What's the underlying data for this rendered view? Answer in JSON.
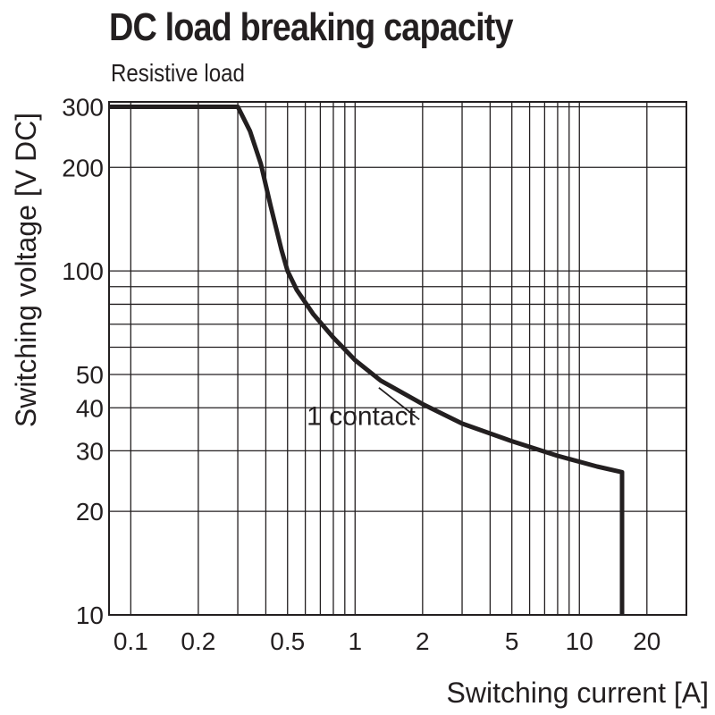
{
  "chart_data": {
    "type": "line",
    "title": "DC load breaking capacity",
    "subtitle": "Resistive load",
    "xlabel": "Switching current [A]",
    "ylabel": "Switching voltage [V DC]",
    "xscale": "log",
    "yscale": "log",
    "xlim": [
      0.08,
      30
    ],
    "ylim": [
      10,
      310
    ],
    "x_ticks": [
      0.1,
      0.2,
      0.5,
      1,
      2,
      5,
      10,
      20
    ],
    "x_tick_labels": [
      "0.1",
      "0.2",
      "0.5",
      "1",
      "2",
      "5",
      "10",
      "20"
    ],
    "y_ticks": [
      10,
      20,
      30,
      40,
      50,
      100,
      200,
      300
    ],
    "y_tick_labels": [
      "10",
      "20",
      "30",
      "40",
      "50",
      "100",
      "200",
      "300"
    ],
    "x_grid": [
      0.1,
      0.2,
      0.3,
      0.4,
      0.5,
      0.6,
      0.7,
      0.8,
      0.9,
      1,
      2,
      3,
      4,
      5,
      6,
      7,
      8,
      9,
      10,
      20
    ],
    "y_grid": [
      10,
      20,
      30,
      40,
      50,
      60,
      70,
      80,
      90,
      100,
      200,
      300
    ],
    "grid": true,
    "series": [
      {
        "name": "1 contact",
        "color": "#231f20",
        "x": [
          0.08,
          0.3,
          0.34,
          0.38,
          0.42,
          0.47,
          0.5,
          0.55,
          0.65,
          0.8,
          1.0,
          1.3,
          2.0,
          3.0,
          5.0,
          8.0,
          12.0,
          15.5,
          15.5
        ],
        "y": [
          300,
          300,
          255,
          205,
          155,
          115,
          100,
          88,
          75,
          64,
          55,
          48,
          41,
          36,
          32,
          29,
          27,
          26,
          10
        ]
      }
    ],
    "annotations": [
      {
        "text": "1 contact",
        "x": 0.62,
        "y": 34,
        "arrow_to_x": 1.3,
        "arrow_to_y": 48
      }
    ]
  }
}
